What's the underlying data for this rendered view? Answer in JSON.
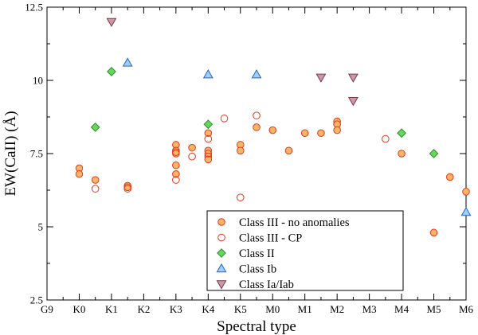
{
  "chart_data": {
    "type": "scatter",
    "title": "",
    "xlabel": "Spectral type",
    "ylabel": "EW(CaII) (Å)",
    "x_categories": [
      "G9",
      "K0",
      "K1",
      "K2",
      "K3",
      "K4",
      "K5",
      "M0",
      "M1",
      "M2",
      "M3",
      "M4",
      "M5",
      "M6"
    ],
    "xlim": [
      0,
      13
    ],
    "ylim": [
      2.5,
      12.5
    ],
    "y_ticks": [
      2.5,
      5,
      7.5,
      10,
      12.5
    ],
    "y_tick_labels": [
      "2.5",
      "5",
      "7.5",
      "10",
      "12.5"
    ],
    "legend_position": "bottom-center",
    "series": [
      {
        "name": "Class III - no anomalies",
        "marker": "circle-filled",
        "fill": "#f5b467",
        "stroke": "#e03a1e",
        "points": [
          [
            1,
            7.0
          ],
          [
            1,
            6.8
          ],
          [
            1.5,
            6.6
          ],
          [
            2.5,
            6.4
          ],
          [
            2.5,
            6.35
          ],
          [
            4,
            7.8
          ],
          [
            4,
            7.6
          ],
          [
            4,
            7.5
          ],
          [
            4,
            7.1
          ],
          [
            4,
            6.8
          ],
          [
            4.5,
            7.7
          ],
          [
            5,
            8.2
          ],
          [
            5,
            7.6
          ],
          [
            5,
            7.4
          ],
          [
            5,
            7.3
          ],
          [
            6,
            7.8
          ],
          [
            6,
            7.6
          ],
          [
            6.5,
            8.4
          ],
          [
            7,
            8.3
          ],
          [
            7.5,
            7.6
          ],
          [
            8,
            8.2
          ],
          [
            8.5,
            8.2
          ],
          [
            9,
            8.6
          ],
          [
            9,
            8.5
          ],
          [
            9,
            8.3
          ],
          [
            11,
            7.5
          ],
          [
            12,
            4.8
          ],
          [
            12.5,
            6.7
          ],
          [
            13,
            6.2
          ]
        ]
      },
      {
        "name": "Class III - CP",
        "marker": "circle-open",
        "fill": "none",
        "stroke": "#e03a1e",
        "points": [
          [
            1.5,
            6.3
          ],
          [
            2.5,
            6.3
          ],
          [
            4,
            7.55
          ],
          [
            4,
            6.6
          ],
          [
            4.5,
            7.4
          ],
          [
            5,
            8.0
          ],
          [
            5,
            7.5
          ],
          [
            5.5,
            8.7
          ],
          [
            6,
            6.0
          ],
          [
            6.5,
            8.8
          ],
          [
            10.5,
            8.0
          ]
        ]
      },
      {
        "name": "Class II",
        "marker": "diamond",
        "fill": "#66d75a",
        "stroke": "#2e8f2e",
        "points": [
          [
            1.5,
            8.4
          ],
          [
            2,
            10.3
          ],
          [
            5,
            8.5
          ],
          [
            11,
            8.2
          ],
          [
            12,
            7.5
          ]
        ]
      },
      {
        "name": "Class Ib",
        "marker": "triangle-up",
        "fill": "#9ed0f5",
        "stroke": "#2a63c8",
        "points": [
          [
            2.5,
            10.6
          ],
          [
            5,
            10.2
          ],
          [
            6.5,
            10.2
          ],
          [
            13,
            5.5
          ]
        ]
      },
      {
        "name": "Class Ia/Iab",
        "marker": "triangle-down",
        "fill": "#c79aa6",
        "stroke": "#7a3a4c",
        "points": [
          [
            2,
            12.0
          ],
          [
            8.5,
            10.1
          ],
          [
            9.5,
            10.1
          ],
          [
            9.5,
            9.3
          ]
        ]
      }
    ]
  }
}
